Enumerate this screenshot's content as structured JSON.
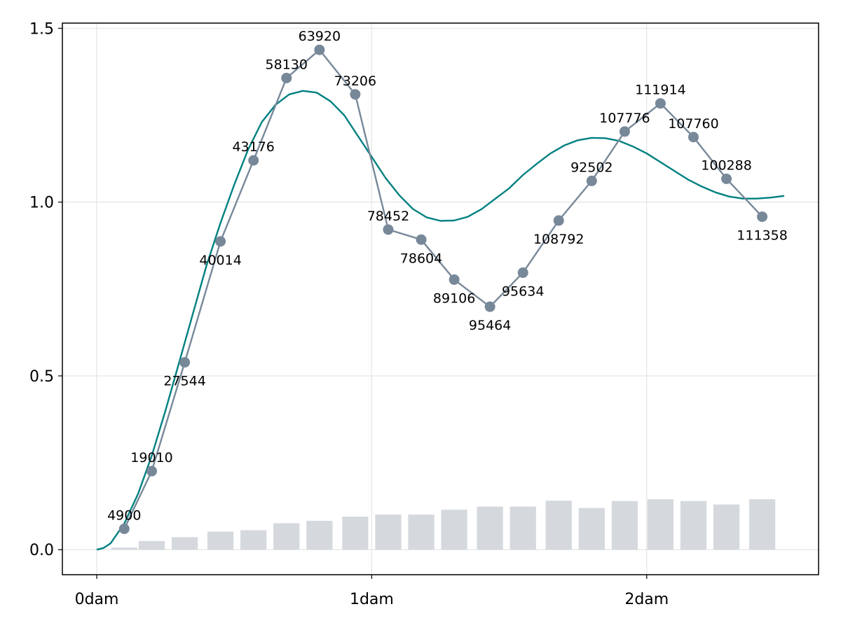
{
  "chart_data": {
    "type": "line",
    "xlim": [
      -0.125,
      2.625
    ],
    "ylim": [
      -0.072,
      1.515
    ],
    "x_ticks": [
      {
        "value": 0,
        "label": "0dam"
      },
      {
        "value": 1,
        "label": "1dam"
      },
      {
        "value": 2,
        "label": "2dam"
      }
    ],
    "y_ticks": [
      {
        "value": 0.0,
        "label": "0.0"
      },
      {
        "value": 0.5,
        "label": "0.5"
      },
      {
        "value": 1.0,
        "label": "1.0"
      },
      {
        "value": 1.5,
        "label": "1.5"
      }
    ],
    "grid": true,
    "colors": {
      "points": "#778899",
      "curve": "#008080",
      "bars": "#d5d9de",
      "grid": "#e5e5e5"
    },
    "series": [
      {
        "type": "scatter-line",
        "x": [
          0.1,
          0.2,
          0.32,
          0.45,
          0.57,
          0.69,
          0.81,
          0.94,
          1.06,
          1.18,
          1.3,
          1.43,
          1.55,
          1.68,
          1.8,
          1.92,
          2.05,
          2.17,
          2.29,
          2.42
        ],
        "y": [
          0.06,
          0.226,
          0.539,
          0.887,
          1.12,
          1.357,
          1.438,
          1.31,
          0.921,
          0.892,
          0.777,
          0.699,
          0.797,
          0.947,
          1.061,
          1.203,
          1.284,
          1.187,
          1.067,
          0.958
        ],
        "labels": [
          "4900",
          "19010",
          "27544",
          "40014",
          "43176",
          "58130",
          "63920",
          "73206",
          "78452",
          "78604",
          "89106",
          "95464",
          "95634",
          "108792",
          "92502",
          "107776",
          "111914",
          "107760",
          "100288",
          "111358"
        ],
        "label_pos": [
          "above",
          "above",
          "below",
          "below",
          "above",
          "above",
          "above",
          "above",
          "above",
          "below",
          "below",
          "below",
          "below",
          "below",
          "above",
          "above",
          "above",
          "above",
          "above",
          "below"
        ]
      },
      {
        "type": "smooth-line",
        "x": [
          0,
          0.025,
          0.05,
          0.1,
          0.15,
          0.2,
          0.25,
          0.3,
          0.35,
          0.4,
          0.45,
          0.5,
          0.55,
          0.6,
          0.65,
          0.7,
          0.75,
          0.8,
          0.85,
          0.9,
          0.95,
          1.0,
          1.05,
          1.1,
          1.15,
          1.2,
          1.25,
          1.3,
          1.35,
          1.4,
          1.45,
          1.5,
          1.55,
          1.6,
          1.65,
          1.7,
          1.75,
          1.8,
          1.85,
          1.9,
          1.95,
          2.0,
          2.05,
          2.1,
          2.15,
          2.2,
          2.25,
          2.3,
          2.35,
          2.4,
          2.45,
          2.5
        ],
        "y": [
          0,
          0.005,
          0.018,
          0.075,
          0.16,
          0.27,
          0.4,
          0.54,
          0.68,
          0.82,
          0.94,
          1.05,
          1.15,
          1.23,
          1.28,
          1.31,
          1.32,
          1.315,
          1.29,
          1.25,
          1.19,
          1.13,
          1.07,
          1.02,
          0.98,
          0.956,
          0.946,
          0.947,
          0.958,
          0.98,
          1.01,
          1.04,
          1.078,
          1.11,
          1.14,
          1.163,
          1.178,
          1.185,
          1.184,
          1.176,
          1.16,
          1.14,
          1.115,
          1.09,
          1.065,
          1.045,
          1.028,
          1.016,
          1.01,
          1.01,
          1.013,
          1.018
        ]
      },
      {
        "type": "bar",
        "x": [
          0.1,
          0.2,
          0.32,
          0.45,
          0.57,
          0.69,
          0.81,
          0.94,
          1.06,
          1.18,
          1.3,
          1.43,
          1.55,
          1.68,
          1.8,
          1.92,
          2.05,
          2.17,
          2.29,
          2.42
        ],
        "values": [
          0.006,
          0.025,
          0.036,
          0.052,
          0.056,
          0.076,
          0.083,
          0.095,
          0.101,
          0.101,
          0.115,
          0.124,
          0.124,
          0.141,
          0.12,
          0.14,
          0.145,
          0.14,
          0.13,
          0.145
        ],
        "bar_width": 0.095
      }
    ]
  }
}
